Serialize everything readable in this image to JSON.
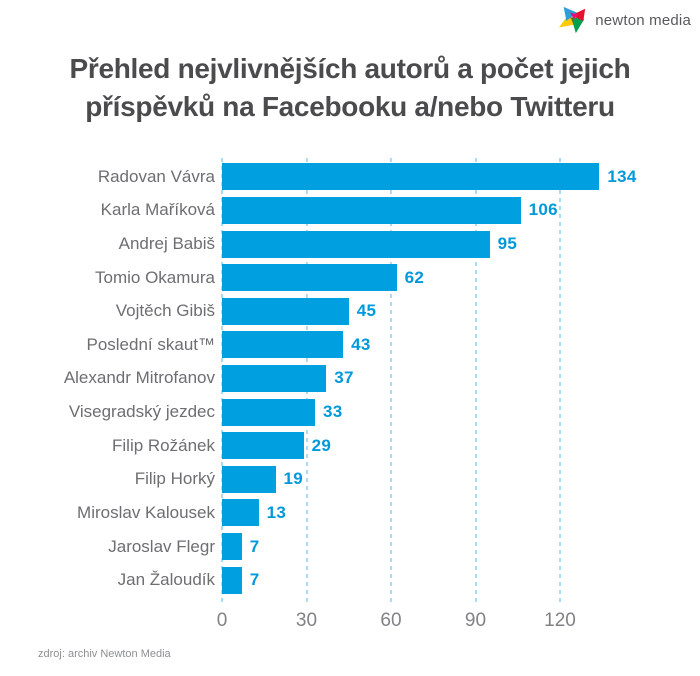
{
  "brand": {
    "logo_text": "newton media",
    "logo_icon": "pinwheel-logo-icon"
  },
  "title": {
    "line1": "Přehled nejvlivnějších autorů a počet jejich",
    "line2": "příspěvků na Facebooku a/nebo Twitteru"
  },
  "source": "zdroj: archiv Newton Media",
  "colors": {
    "bar": "#009FE0",
    "value": "#0099DC",
    "grid": "#A8DCF4",
    "title": "#4B4B4D",
    "label": "#6D6E71",
    "tick": "#808285",
    "source": "#8D8F91",
    "logo_text": "#58595B",
    "logo_blue": "#2B9FD8",
    "logo_red": "#E8112D",
    "logo_magenta": "#E5117F",
    "logo_yellow": "#FFCB05",
    "logo_green": "#00A04E",
    "logo_olive": "#5F7327"
  },
  "chart_data": {
    "type": "bar",
    "orientation": "horizontal",
    "title": "Přehled nejvlivnějších autorů a počet jejich příspěvků na Facebooku a/nebo Twitteru",
    "categories": [
      "Radovan Vávra",
      "Karla Maříková",
      "Andrej Babiš",
      "Tomio Okamura",
      "Vojtěch Gibiš",
      "Poslední skaut™",
      "Alexandr Mitrofanov",
      "Visegradský jezdec",
      "Filip Rožánek",
      "Filip Horký",
      "Miroslav Kalousek",
      "Jaroslav Flegr",
      "Jan Žaloudík"
    ],
    "values": [
      134,
      106,
      95,
      62,
      45,
      43,
      37,
      33,
      29,
      19,
      13,
      7,
      7
    ],
    "xticks": [
      0,
      30,
      60,
      90,
      120
    ],
    "xlim": [
      0,
      142
    ],
    "xlabel": "",
    "ylabel": "",
    "grid": "vertical-dashed",
    "legend": "none",
    "value_labels": "at-bar-end"
  }
}
